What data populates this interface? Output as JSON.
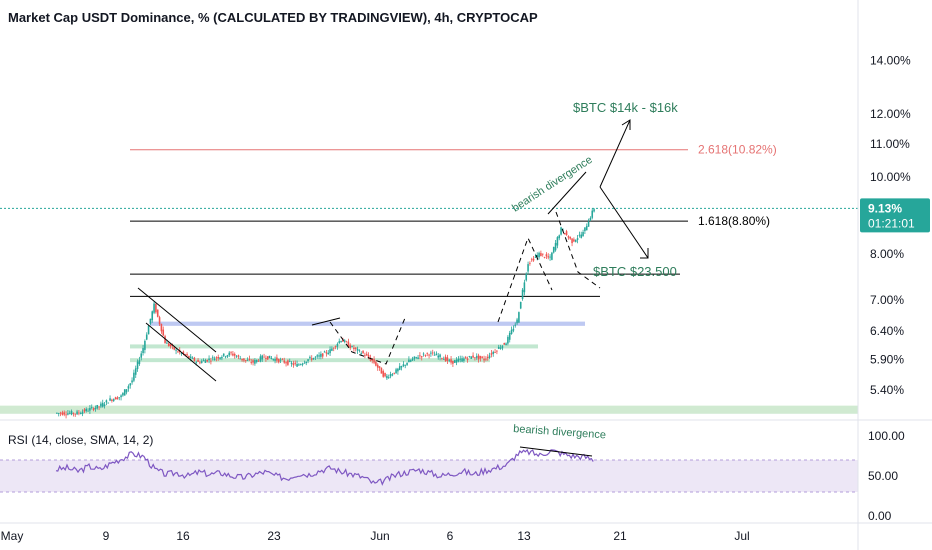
{
  "chart_data": {
    "type": "candlestick",
    "title": "Market Cap USDT Dominance, % (CALCULATED BY TRADINGVIEW), 4h, CRYPTOCAP",
    "y_axis": {
      "scale": "log",
      "range": [
        4.95,
        15.3
      ],
      "tick_labels": [
        "14.00%",
        "12.00%",
        "11.00%",
        "10.00%",
        "8.00%",
        "7.00%",
        "6.40%",
        "5.90%",
        "5.40%"
      ]
    },
    "x_axis": {
      "tick_labels": [
        "May",
        "9",
        "16",
        "23",
        "Jun",
        "6",
        "13",
        "21",
        "Jul"
      ]
    },
    "price_series": [
      {
        "day": 1,
        "close": 5.05
      },
      {
        "day": 2,
        "close": 5.05
      },
      {
        "day": 3,
        "close": 5.1
      },
      {
        "day": 4,
        "close": 5.15
      },
      {
        "day": 5,
        "close": 5.25
      },
      {
        "day": 6,
        "close": 5.3
      },
      {
        "day": 7,
        "close": 5.55
      },
      {
        "day": 8,
        "close": 6.1
      },
      {
        "day": 9,
        "close": 6.9
      },
      {
        "day": 10,
        "close": 6.2
      },
      {
        "day": 11,
        "close": 6.05
      },
      {
        "day": 12,
        "close": 5.95
      },
      {
        "day": 13,
        "close": 5.85
      },
      {
        "day": 14,
        "close": 5.9
      },
      {
        "day": 15,
        "close": 5.95
      },
      {
        "day": 16,
        "close": 6.0
      },
      {
        "day": 17,
        "close": 5.9
      },
      {
        "day": 18,
        "close": 5.85
      },
      {
        "day": 19,
        "close": 5.95
      },
      {
        "day": 20,
        "close": 5.9
      },
      {
        "day": 21,
        "close": 5.85
      },
      {
        "day": 22,
        "close": 5.8
      },
      {
        "day": 23,
        "close": 5.9
      },
      {
        "day": 24,
        "close": 5.95
      },
      {
        "day": 25,
        "close": 6.05
      },
      {
        "day": 26,
        "close": 6.25
      },
      {
        "day": 27,
        "close": 6.1
      },
      {
        "day": 28,
        "close": 6.0
      },
      {
        "day": 29,
        "close": 5.85
      },
      {
        "day": 30,
        "close": 5.6
      },
      {
        "day": 31,
        "close": 5.7
      },
      {
        "day": 32,
        "close": 5.85
      },
      {
        "day": 33,
        "close": 5.95
      },
      {
        "day": 34,
        "close": 6.0
      },
      {
        "day": 35,
        "close": 5.95
      },
      {
        "day": 36,
        "close": 5.85
      },
      {
        "day": 37,
        "close": 5.9
      },
      {
        "day": 38,
        "close": 5.95
      },
      {
        "day": 39,
        "close": 5.9
      },
      {
        "day": 40,
        "close": 6.05
      },
      {
        "day": 41,
        "close": 6.2
      },
      {
        "day": 42,
        "close": 6.6
      },
      {
        "day": 43,
        "close": 7.8
      },
      {
        "day": 44,
        "close": 8.0
      },
      {
        "day": 45,
        "close": 7.9
      },
      {
        "day": 46,
        "close": 8.6
      },
      {
        "day": 47,
        "close": 8.3
      },
      {
        "day": 48,
        "close": 8.5
      },
      {
        "day": 49,
        "close": 9.13
      }
    ],
    "horizontal_levels": [
      {
        "price": 10.82,
        "label": "2.618(10.82%)",
        "color": "#e57373"
      },
      {
        "price": 8.8,
        "label": "1.618(8.80%)",
        "color": "#000000"
      },
      {
        "price": 7.55,
        "label": "",
        "color": "#000000"
      },
      {
        "price": 7.08,
        "label": "",
        "color": "#000000"
      }
    ],
    "zones": [
      {
        "from": 6.5,
        "to": 6.58,
        "color": "#b3c0f0"
      },
      {
        "from": 6.1,
        "to": 6.16,
        "color": "#b7e3c8"
      },
      {
        "from": 5.86,
        "to": 5.92,
        "color": "#b7e3c8"
      },
      {
        "from": 5.04,
        "to": 5.16,
        "color": "#c8e6c9"
      }
    ],
    "annotations": [
      {
        "text": "$BTC $14k - $16k",
        "color": "#2e7d5b"
      },
      {
        "text": "$BTC $23.500",
        "color": "#2e7d5b"
      },
      {
        "text": "bearish divergence",
        "color": "#2e7d5b"
      }
    ],
    "last_price": {
      "label": "9.13%",
      "countdown": "01:21:01",
      "color": "#26a69a"
    },
    "rsi": {
      "label": "RSI (14, close, SMA, 14, 2)",
      "tick_labels": [
        "100.00",
        "50.00",
        "0.00"
      ],
      "band": [
        30,
        70
      ],
      "band_color": "#ede7f6",
      "line_color": "#7e57c2",
      "values": [
        58,
        60,
        56,
        62,
        58,
        66,
        72,
        78,
        74,
        58,
        52,
        54,
        50,
        55,
        52,
        54,
        50,
        48,
        52,
        55,
        50,
        47,
        53,
        52,
        57,
        60,
        55,
        52,
        48,
        40,
        45,
        52,
        55,
        58,
        54,
        50,
        53,
        56,
        52,
        57,
        60,
        64,
        78,
        80,
        76,
        82,
        78,
        75,
        74,
        70
      ],
      "annotation": "bearish divergence"
    }
  }
}
